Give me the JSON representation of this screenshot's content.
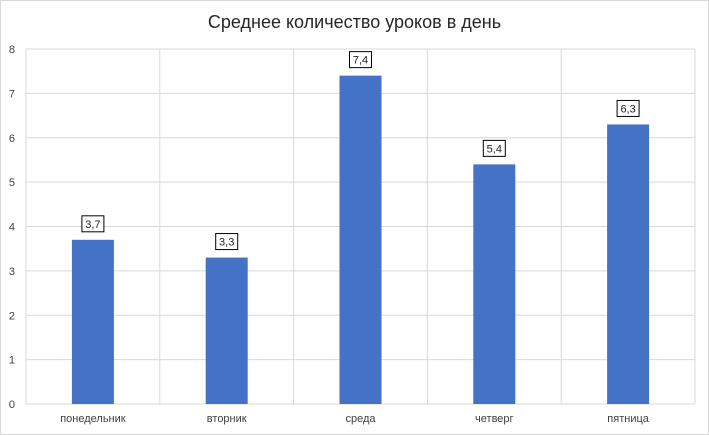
{
  "chart_data": {
    "type": "bar",
    "title": "Среднее количество уроков в день",
    "categories": [
      "понедельник",
      "вторник",
      "среда",
      "четверг",
      "пятница"
    ],
    "values": [
      3.7,
      3.3,
      7.4,
      5.4,
      6.3
    ],
    "data_labels": [
      "3,7",
      "3,3",
      "7,4",
      "5,4",
      "6,3"
    ],
    "y_ticks": [
      "0",
      "1",
      "2",
      "3",
      "4",
      "5",
      "6",
      "7",
      "8"
    ],
    "ylim": [
      0,
      8
    ],
    "xlabel": "",
    "ylabel": "",
    "grid": "both",
    "legend": "none",
    "colors": {
      "bar": "#4472c4",
      "grid": "#d9d9d9",
      "label_border": "#000000"
    }
  }
}
